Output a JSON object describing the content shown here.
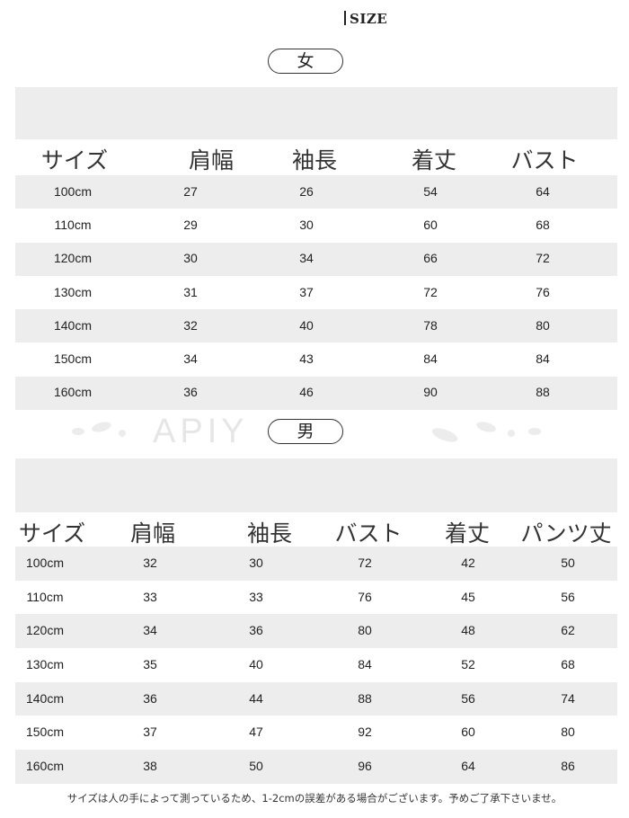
{
  "title": "SIZE",
  "watermark": "APIY",
  "women": {
    "label": "女",
    "headers": [
      "サイズ",
      "肩幅",
      "袖長",
      "着丈",
      "バスト"
    ],
    "rows": [
      [
        "100cm",
        "27",
        "26",
        "54",
        "64"
      ],
      [
        "110cm",
        "29",
        "30",
        "60",
        "68"
      ],
      [
        "120cm",
        "30",
        "34",
        "66",
        "72"
      ],
      [
        "130cm",
        "31",
        "37",
        "72",
        "76"
      ],
      [
        "140cm",
        "32",
        "40",
        "78",
        "80"
      ],
      [
        "150cm",
        "34",
        "43",
        "84",
        "84"
      ],
      [
        "160cm",
        "36",
        "46",
        "90",
        "88"
      ]
    ]
  },
  "men": {
    "label": "男",
    "headers": [
      "サイズ",
      "肩幅",
      "袖長",
      "バスト",
      "着丈",
      "パンツ丈"
    ],
    "rows": [
      [
        "100cm",
        "32",
        "30",
        "72",
        "42",
        "50"
      ],
      [
        "110cm",
        "33",
        "33",
        "76",
        "45",
        "56"
      ],
      [
        "120cm",
        "34",
        "36",
        "80",
        "48",
        "62"
      ],
      [
        "130cm",
        "35",
        "40",
        "84",
        "52",
        "68"
      ],
      [
        "140cm",
        "36",
        "44",
        "88",
        "56",
        "74"
      ],
      [
        "150cm",
        "37",
        "47",
        "92",
        "60",
        "80"
      ],
      [
        "160cm",
        "38",
        "50",
        "96",
        "64",
        "86"
      ]
    ]
  },
  "note": "サイズは人の手によって測っているため、1-2cmの誤差がある場合がございます。予めご了承下さいませ。"
}
